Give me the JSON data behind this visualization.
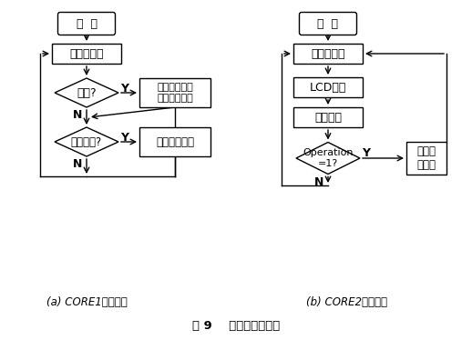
{
  "fig_width": 5.18,
  "fig_height": 3.74,
  "dpi": 100,
  "background_color": "#ffffff",
  "line_color": "#000000",
  "text_color": "#000000",
  "caption_a": "(a) CORE1程序流程",
  "caption_b": "(b) CORE2程序流程",
  "figure_title": "图 9    系统主程序流程",
  "core1": {
    "start_label": "开  始",
    "init_label": "系统初始化",
    "d1_label": "待机?",
    "d1_y": "Y",
    "d1_n": "N",
    "box1_label": "读时间及家电\n参数并送显示",
    "d2_label": "有键按下?",
    "d2_y": "Y",
    "d2_n": "N",
    "box2_label": "执行相关操作"
  },
  "core2": {
    "start_label": "开  始",
    "init_label": "系统初始化",
    "lcd_label": "LCD显示",
    "cj_label": "参数采集",
    "d1_label": "Operation\n=1?",
    "d1_y": "Y",
    "d1_n": "N",
    "box1_label": "采集参\n数发送"
  }
}
